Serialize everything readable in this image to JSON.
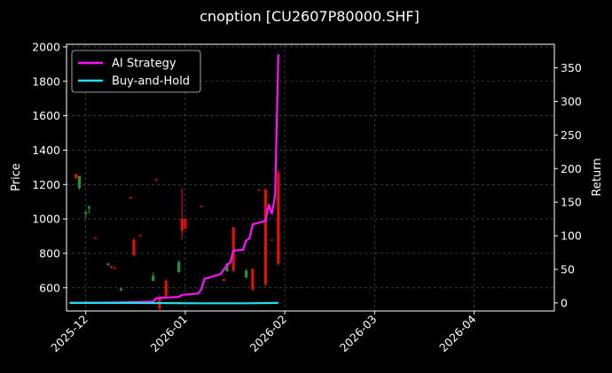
{
  "chart_data": {
    "type": "candlestick+line",
    "title": "cnoption [CU2607P80000.SHF]",
    "ylabel_left": "Price",
    "ylabel_right": "Return",
    "xlabel": "",
    "x_tick_labels": [
      "2025-12",
      "2026-01",
      "2026-02",
      "2026-03",
      "2026-04"
    ],
    "x_range": [
      "2025-11-25",
      "2026-04-26"
    ],
    "ylim_left": [
      465,
      2015
    ],
    "yticks_left": [
      600,
      800,
      1000,
      1200,
      1400,
      1600,
      1800,
      2000
    ],
    "ylim_right": [
      -12,
      385
    ],
    "yticks_right": [
      0,
      50,
      100,
      150,
      200,
      250,
      300,
      350
    ],
    "grid": true,
    "legend_position": "top-left",
    "colors": {
      "background": "#000000",
      "up": "#1f9a2a",
      "down": "#e01010",
      "ai_strategy": "#ff10ff",
      "buy_and_hold": "#20e0f0"
    },
    "candles": [
      {
        "date": "2025-11-28",
        "open": 1260,
        "high": 1265,
        "low": 1235,
        "close": 1235
      },
      {
        "date": "2025-11-29",
        "open": 1180,
        "high": 1250,
        "low": 1170,
        "close": 1250
      },
      {
        "date": "2025-12-01",
        "open": 1030,
        "high": 1050,
        "low": 1000,
        "close": 1040
      },
      {
        "date": "2025-12-02",
        "open": 1060,
        "high": 1080,
        "low": 1030,
        "close": 1070
      },
      {
        "date": "2025-12-04",
        "open": 890,
        "high": 895,
        "low": 885,
        "close": 888
      },
      {
        "date": "2025-12-08",
        "open": 732,
        "high": 745,
        "low": 728,
        "close": 740
      },
      {
        "date": "2025-12-09",
        "open": 725,
        "high": 730,
        "low": 712,
        "close": 718
      },
      {
        "date": "2025-12-10",
        "open": 715,
        "high": 720,
        "low": 710,
        "close": 714
      },
      {
        "date": "2025-12-12",
        "open": 585,
        "high": 600,
        "low": 580,
        "close": 595
      },
      {
        "date": "2025-12-15",
        "open": 1125,
        "high": 1130,
        "low": 1120,
        "close": 1122
      },
      {
        "date": "2025-12-16",
        "open": 880,
        "high": 890,
        "low": 780,
        "close": 790
      },
      {
        "date": "2025-12-18",
        "open": 905,
        "high": 910,
        "low": 900,
        "close": 902
      },
      {
        "date": "2025-12-22",
        "open": 640,
        "high": 690,
        "low": 640,
        "close": 670
      },
      {
        "date": "2025-12-23",
        "open": 1230,
        "high": 1235,
        "low": 1225,
        "close": 1228
      },
      {
        "date": "2025-12-24",
        "open": 540,
        "high": 560,
        "low": 470,
        "close": 480
      },
      {
        "date": "2025-12-26",
        "open": 640,
        "high": 650,
        "low": 540,
        "close": 550
      },
      {
        "date": "2025-12-30",
        "open": 690,
        "high": 760,
        "low": 690,
        "close": 750
      },
      {
        "date": "2025-12-31",
        "open": 1000,
        "high": 1180,
        "low": 880,
        "close": 930
      },
      {
        "date": "2026-01-01",
        "open": 1000,
        "high": 1000,
        "low": 940,
        "close": 945
      },
      {
        "date": "2026-01-06",
        "open": 1075,
        "high": 1080,
        "low": 1070,
        "close": 1072
      },
      {
        "date": "2026-01-13",
        "open": 650,
        "high": 652,
        "low": 638,
        "close": 640
      },
      {
        "date": "2026-01-14",
        "open": 695,
        "high": 745,
        "low": 695,
        "close": 740
      },
      {
        "date": "2026-01-16",
        "open": 950,
        "high": 955,
        "low": 690,
        "close": 700
      },
      {
        "date": "2026-01-20",
        "open": 660,
        "high": 710,
        "low": 655,
        "close": 700
      },
      {
        "date": "2026-01-22",
        "open": 710,
        "high": 715,
        "low": 580,
        "close": 590
      },
      {
        "date": "2026-01-24",
        "open": 1170,
        "high": 1172,
        "low": 1168,
        "close": 1169
      },
      {
        "date": "2026-01-26",
        "open": 1170,
        "high": 1180,
        "low": 610,
        "close": 620
      },
      {
        "date": "2026-01-28",
        "open": 880,
        "high": 882,
        "low": 878,
        "close": 879
      },
      {
        "date": "2026-01-30",
        "open": 1270,
        "high": 1290,
        "low": 730,
        "close": 740
      }
    ],
    "series": [
      {
        "name": "AI Strategy",
        "points": [
          [
            "2025-11-26",
            0
          ],
          [
            "2025-12-10",
            0.5
          ],
          [
            "2025-12-15",
            1
          ],
          [
            "2025-12-22",
            2
          ],
          [
            "2025-12-23",
            7
          ],
          [
            "2025-12-26",
            8
          ],
          [
            "2025-12-30",
            9
          ],
          [
            "2025-12-31",
            12
          ],
          [
            "2026-01-05",
            14
          ],
          [
            "2026-01-06",
            20
          ],
          [
            "2026-01-07",
            36
          ],
          [
            "2026-01-08",
            37
          ],
          [
            "2026-01-12",
            43
          ],
          [
            "2026-01-14",
            56
          ],
          [
            "2026-01-15",
            60
          ],
          [
            "2026-01-16",
            78
          ],
          [
            "2026-01-19",
            79
          ],
          [
            "2026-01-20",
            93
          ],
          [
            "2026-01-21",
            96
          ],
          [
            "2026-01-22",
            117
          ],
          [
            "2026-01-26",
            122
          ],
          [
            "2026-01-27",
            146
          ],
          [
            "2026-01-28",
            133
          ],
          [
            "2026-01-29",
            160
          ],
          [
            "2026-01-30",
            370
          ]
        ]
      },
      {
        "name": "Buy-and-Hold",
        "points": [
          [
            "2025-11-26",
            0
          ],
          [
            "2025-12-15",
            0
          ],
          [
            "2026-01-05",
            -0.5
          ],
          [
            "2026-01-20",
            -0.5
          ],
          [
            "2026-01-30",
            0
          ]
        ]
      }
    ]
  }
}
